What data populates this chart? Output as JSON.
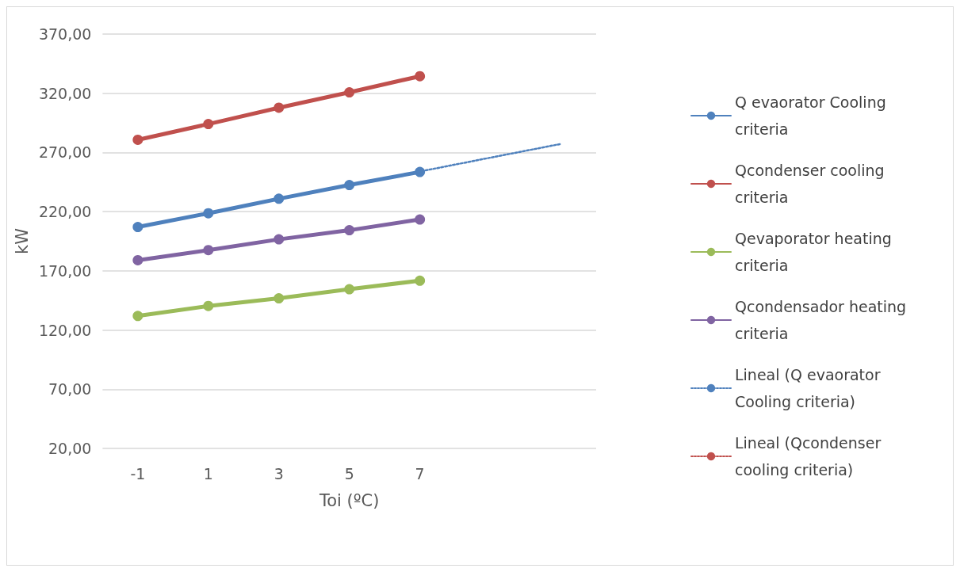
{
  "chart_data": {
    "type": "line",
    "xlabel": "Toi (ºC)",
    "ylabel": "kW",
    "categories": [
      "-1",
      "1",
      "3",
      "5",
      "7",
      null,
      null
    ],
    "ylim": [
      20,
      370
    ],
    "yticks": [
      {
        "value": 20,
        "label": "20,00"
      },
      {
        "value": 70,
        "label": "70,00"
      },
      {
        "value": 120,
        "label": "120,00"
      },
      {
        "value": 170,
        "label": "170,00"
      },
      {
        "value": 220,
        "label": "220,00"
      },
      {
        "value": 270,
        "label": "270,00"
      },
      {
        "value": 320,
        "label": "320,00"
      },
      {
        "value": 370,
        "label": "370,00"
      }
    ],
    "grid": "y",
    "legend": "right",
    "marker": "circle",
    "line_style": "solid",
    "series": [
      {
        "name": "Q evaorator Cooling criteria",
        "color": "#4f81bd",
        "values": [
          207,
          218.6,
          230.9,
          242.5,
          253.5,
          null,
          null
        ]
      },
      {
        "name": "Qcondenser cooling criteria",
        "color": "#c0504d",
        "values": [
          280.7,
          294,
          307.8,
          320.8,
          334.4,
          null,
          null
        ]
      },
      {
        "name": "Qevaporator heating criteria",
        "color": "#9bbb59",
        "values": [
          131.9,
          140.3,
          146.8,
          154.5,
          161.7,
          null,
          null
        ]
      },
      {
        "name": "Qcondensador heating criteria",
        "color": "#8064a2",
        "values": [
          179,
          187.5,
          196.6,
          204.3,
          213.4,
          null,
          null
        ]
      },
      {
        "name": "Lineal (Q evaorator Cooling criteria)",
        "color": "#4f81bd",
        "marker": "none",
        "line_style": "dotted",
        "values": [
          207.1,
          218.8,
          230.5,
          242.2,
          253.9,
          265.6,
          277.2
        ]
      },
      {
        "name": "Lineal (Qcondenser cooling criteria)",
        "color": "#c0504d",
        "marker": "none",
        "line_style": "dotted",
        "values": [
          null,
          null,
          null,
          null,
          null,
          null,
          null
        ]
      }
    ]
  }
}
